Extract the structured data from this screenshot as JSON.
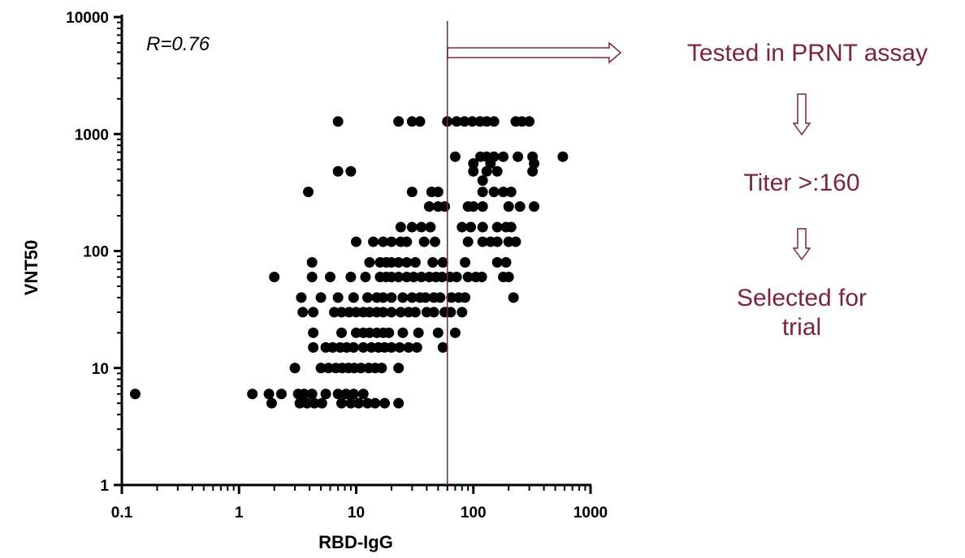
{
  "accent_color": "#7b2340",
  "chart_data": {
    "type": "scatter",
    "xlabel": "RBD-IgG",
    "ylabel": "VNT50",
    "x_scale": "log",
    "y_scale": "log",
    "xlim": [
      0.1,
      1000
    ],
    "ylim": [
      1,
      10000
    ],
    "x_ticks": [
      "0.1",
      "1",
      "10",
      "100",
      "1000"
    ],
    "y_ticks": [
      "1",
      "10",
      "100",
      "1000",
      "10000"
    ],
    "grid": false,
    "annotation": "R=0.76",
    "threshold_x": 60,
    "points": [
      {
        "x": 0.13,
        "y": 6
      },
      {
        "x": 1.3,
        "y": 6
      },
      {
        "x": 1.8,
        "y": 6
      },
      {
        "x": 2.3,
        "y": 6
      },
      {
        "x": 1.9,
        "y": 5
      },
      {
        "x": 2.0,
        "y": 60
      },
      {
        "x": 3.2,
        "y": 6
      },
      {
        "x": 3.6,
        "y": 6
      },
      {
        "x": 4.2,
        "y": 6
      },
      {
        "x": 3.3,
        "y": 5
      },
      {
        "x": 3.8,
        "y": 5
      },
      {
        "x": 4.4,
        "y": 5
      },
      {
        "x": 5.1,
        "y": 5
      },
      {
        "x": 5.5,
        "y": 6
      },
      {
        "x": 7,
        "y": 6
      },
      {
        "x": 7.5,
        "y": 5
      },
      {
        "x": 8.2,
        "y": 6
      },
      {
        "x": 9,
        "y": 5
      },
      {
        "x": 9.5,
        "y": 6
      },
      {
        "x": 10.5,
        "y": 5
      },
      {
        "x": 11.5,
        "y": 6
      },
      {
        "x": 12.5,
        "y": 5
      },
      {
        "x": 14.5,
        "y": 5
      },
      {
        "x": 17.5,
        "y": 5
      },
      {
        "x": 23,
        "y": 5
      },
      {
        "x": 3.0,
        "y": 10
      },
      {
        "x": 5,
        "y": 10
      },
      {
        "x": 5.8,
        "y": 10
      },
      {
        "x": 6.7,
        "y": 10
      },
      {
        "x": 7.6,
        "y": 10
      },
      {
        "x": 8.6,
        "y": 10
      },
      {
        "x": 9.6,
        "y": 10
      },
      {
        "x": 11,
        "y": 10
      },
      {
        "x": 12.8,
        "y": 10
      },
      {
        "x": 14.5,
        "y": 10
      },
      {
        "x": 16.5,
        "y": 10
      },
      {
        "x": 23,
        "y": 10
      },
      {
        "x": 4.3,
        "y": 15
      },
      {
        "x": 5.5,
        "y": 15
      },
      {
        "x": 6.3,
        "y": 15
      },
      {
        "x": 7.3,
        "y": 15
      },
      {
        "x": 8.3,
        "y": 15
      },
      {
        "x": 9.5,
        "y": 15
      },
      {
        "x": 11.5,
        "y": 15
      },
      {
        "x": 13.5,
        "y": 15
      },
      {
        "x": 15.5,
        "y": 15
      },
      {
        "x": 17.5,
        "y": 15
      },
      {
        "x": 20,
        "y": 15
      },
      {
        "x": 23.5,
        "y": 15
      },
      {
        "x": 28,
        "y": 15
      },
      {
        "x": 33,
        "y": 15
      },
      {
        "x": 55,
        "y": 15
      },
      {
        "x": 4.3,
        "y": 20
      },
      {
        "x": 7.5,
        "y": 20
      },
      {
        "x": 10,
        "y": 20
      },
      {
        "x": 11.5,
        "y": 20
      },
      {
        "x": 13,
        "y": 20
      },
      {
        "x": 15,
        "y": 20
      },
      {
        "x": 17,
        "y": 20
      },
      {
        "x": 19,
        "y": 20
      },
      {
        "x": 25,
        "y": 20
      },
      {
        "x": 34,
        "y": 20
      },
      {
        "x": 50,
        "y": 20
      },
      {
        "x": 70,
        "y": 20
      },
      {
        "x": 3.5,
        "y": 30
      },
      {
        "x": 4.3,
        "y": 30
      },
      {
        "x": 6.5,
        "y": 30
      },
      {
        "x": 7.5,
        "y": 30
      },
      {
        "x": 8.7,
        "y": 30
      },
      {
        "x": 10,
        "y": 30
      },
      {
        "x": 11.5,
        "y": 30
      },
      {
        "x": 13,
        "y": 30
      },
      {
        "x": 15,
        "y": 30
      },
      {
        "x": 17,
        "y": 30
      },
      {
        "x": 20,
        "y": 30
      },
      {
        "x": 24,
        "y": 30
      },
      {
        "x": 28,
        "y": 30
      },
      {
        "x": 32,
        "y": 30
      },
      {
        "x": 40,
        "y": 30
      },
      {
        "x": 46,
        "y": 30
      },
      {
        "x": 57,
        "y": 30
      },
      {
        "x": 64,
        "y": 30
      },
      {
        "x": 80,
        "y": 30
      },
      {
        "x": 3.4,
        "y": 40
      },
      {
        "x": 5,
        "y": 40
      },
      {
        "x": 7,
        "y": 40
      },
      {
        "x": 9.5,
        "y": 40
      },
      {
        "x": 12.5,
        "y": 40
      },
      {
        "x": 15,
        "y": 40
      },
      {
        "x": 17,
        "y": 40
      },
      {
        "x": 20,
        "y": 40
      },
      {
        "x": 25,
        "y": 40
      },
      {
        "x": 30,
        "y": 40
      },
      {
        "x": 35,
        "y": 40
      },
      {
        "x": 39,
        "y": 40
      },
      {
        "x": 46,
        "y": 40
      },
      {
        "x": 52,
        "y": 40
      },
      {
        "x": 65,
        "y": 40
      },
      {
        "x": 75,
        "y": 40
      },
      {
        "x": 85,
        "y": 40
      },
      {
        "x": 220,
        "y": 40
      },
      {
        "x": 4.2,
        "y": 60
      },
      {
        "x": 6,
        "y": 60
      },
      {
        "x": 9,
        "y": 60
      },
      {
        "x": 12,
        "y": 60
      },
      {
        "x": 16,
        "y": 60
      },
      {
        "x": 18,
        "y": 60
      },
      {
        "x": 20,
        "y": 60
      },
      {
        "x": 23,
        "y": 60
      },
      {
        "x": 27,
        "y": 60
      },
      {
        "x": 31,
        "y": 60
      },
      {
        "x": 36,
        "y": 60
      },
      {
        "x": 42,
        "y": 60
      },
      {
        "x": 48,
        "y": 60
      },
      {
        "x": 54,
        "y": 60
      },
      {
        "x": 63,
        "y": 60
      },
      {
        "x": 72,
        "y": 60
      },
      {
        "x": 90,
        "y": 60
      },
      {
        "x": 105,
        "y": 60
      },
      {
        "x": 118,
        "y": 60
      },
      {
        "x": 180,
        "y": 60
      },
      {
        "x": 200,
        "y": 60
      },
      {
        "x": 4.2,
        "y": 80
      },
      {
        "x": 13,
        "y": 80
      },
      {
        "x": 16,
        "y": 80
      },
      {
        "x": 18,
        "y": 80
      },
      {
        "x": 20,
        "y": 80
      },
      {
        "x": 23,
        "y": 80
      },
      {
        "x": 27,
        "y": 80
      },
      {
        "x": 32,
        "y": 80
      },
      {
        "x": 45,
        "y": 80
      },
      {
        "x": 55,
        "y": 80
      },
      {
        "x": 85,
        "y": 80
      },
      {
        "x": 160,
        "y": 80
      },
      {
        "x": 190,
        "y": 80
      },
      {
        "x": 10,
        "y": 120
      },
      {
        "x": 14,
        "y": 120
      },
      {
        "x": 17,
        "y": 120
      },
      {
        "x": 20,
        "y": 120
      },
      {
        "x": 24,
        "y": 120
      },
      {
        "x": 27,
        "y": 120
      },
      {
        "x": 38,
        "y": 120
      },
      {
        "x": 47,
        "y": 120
      },
      {
        "x": 90,
        "y": 120
      },
      {
        "x": 120,
        "y": 120
      },
      {
        "x": 140,
        "y": 120
      },
      {
        "x": 160,
        "y": 120
      },
      {
        "x": 200,
        "y": 120
      },
      {
        "x": 230,
        "y": 120
      },
      {
        "x": 24,
        "y": 160
      },
      {
        "x": 30,
        "y": 160
      },
      {
        "x": 36,
        "y": 160
      },
      {
        "x": 43,
        "y": 160
      },
      {
        "x": 80,
        "y": 160
      },
      {
        "x": 95,
        "y": 160
      },
      {
        "x": 120,
        "y": 160
      },
      {
        "x": 160,
        "y": 160
      },
      {
        "x": 190,
        "y": 160
      },
      {
        "x": 210,
        "y": 160
      },
      {
        "x": 42,
        "y": 240
      },
      {
        "x": 50,
        "y": 240
      },
      {
        "x": 57,
        "y": 240
      },
      {
        "x": 90,
        "y": 240
      },
      {
        "x": 100,
        "y": 240
      },
      {
        "x": 120,
        "y": 240
      },
      {
        "x": 200,
        "y": 240
      },
      {
        "x": 250,
        "y": 240
      },
      {
        "x": 330,
        "y": 240
      },
      {
        "x": 3.9,
        "y": 320
      },
      {
        "x": 30,
        "y": 320
      },
      {
        "x": 44,
        "y": 320
      },
      {
        "x": 50,
        "y": 320
      },
      {
        "x": 120,
        "y": 320
      },
      {
        "x": 150,
        "y": 320
      },
      {
        "x": 180,
        "y": 320
      },
      {
        "x": 210,
        "y": 320
      },
      {
        "x": 7,
        "y": 480
      },
      {
        "x": 9,
        "y": 480
      },
      {
        "x": 100,
        "y": 480
      },
      {
        "x": 130,
        "y": 480
      },
      {
        "x": 160,
        "y": 480
      },
      {
        "x": 320,
        "y": 480
      },
      {
        "x": 70,
        "y": 640
      },
      {
        "x": 115,
        "y": 640
      },
      {
        "x": 130,
        "y": 640
      },
      {
        "x": 150,
        "y": 640
      },
      {
        "x": 180,
        "y": 640
      },
      {
        "x": 240,
        "y": 640
      },
      {
        "x": 320,
        "y": 640
      },
      {
        "x": 580,
        "y": 640
      },
      {
        "x": 7,
        "y": 1280
      },
      {
        "x": 23,
        "y": 1280
      },
      {
        "x": 30,
        "y": 1280
      },
      {
        "x": 35,
        "y": 1280
      },
      {
        "x": 60,
        "y": 1280
      },
      {
        "x": 72,
        "y": 1280
      },
      {
        "x": 84,
        "y": 1280
      },
      {
        "x": 98,
        "y": 1280
      },
      {
        "x": 114,
        "y": 1280
      },
      {
        "x": 130,
        "y": 1280
      },
      {
        "x": 150,
        "y": 1280
      },
      {
        "x": 230,
        "y": 1280
      },
      {
        "x": 260,
        "y": 1280
      },
      {
        "x": 300,
        "y": 1280
      },
      {
        "x": 100,
        "y": 560
      },
      {
        "x": 140,
        "y": 560
      },
      {
        "x": 120,
        "y": 400
      },
      {
        "x": 330,
        "y": 560
      }
    ]
  },
  "flow": {
    "step1": "Tested in PRNT assay",
    "step2": "Titer >:160",
    "step3_line1": "Selected for",
    "step3_line2": "trial"
  }
}
